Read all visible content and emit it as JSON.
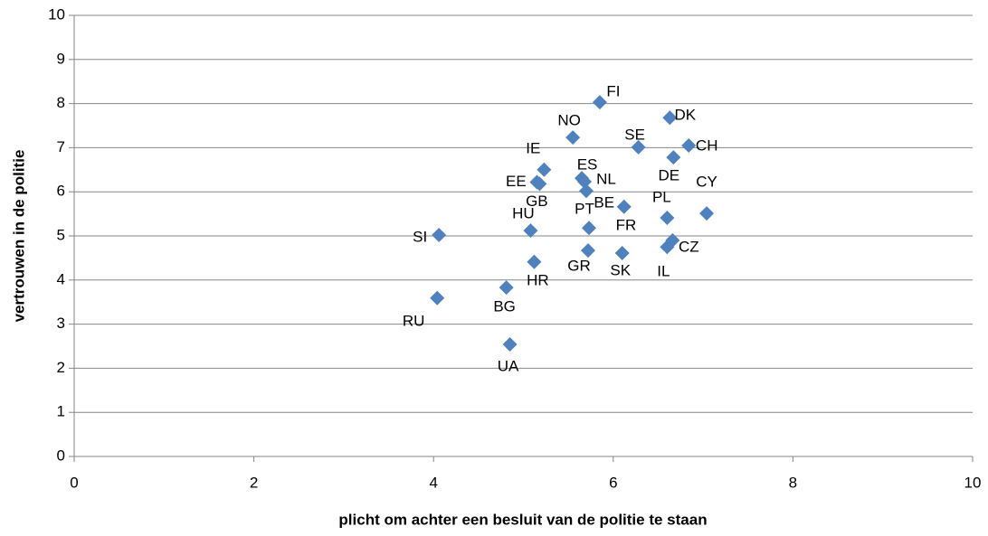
{
  "chart_data": {
    "type": "scatter",
    "x_label": "plicht om achter een besluit van de politie te staan",
    "y_label": "vertrouwen in de politie",
    "xlim": [
      0,
      10
    ],
    "xticks": [
      0,
      2,
      4,
      6,
      8,
      10
    ],
    "ylim": [
      0,
      10
    ],
    "yticks": [
      0,
      1,
      2,
      3,
      4,
      5,
      6,
      7,
      8,
      9,
      10
    ],
    "grid": true,
    "color": "#4f81bd",
    "labels": [
      "FI",
      "DK",
      "NO",
      "SE",
      "CH",
      "DE",
      "IE",
      "ES",
      "NL",
      "EE",
      "GB",
      "PT",
      "BE",
      "CY",
      "PL",
      "HU",
      "FR",
      "SI",
      "CZ",
      "IL",
      "GR",
      "SK",
      "HR",
      "BG",
      "RU",
      "UA"
    ],
    "x": [
      5.85,
      6.63,
      5.55,
      6.28,
      6.84,
      6.67,
      5.23,
      5.65,
      5.68,
      5.15,
      5.18,
      5.7,
      6.12,
      7.04,
      6.6,
      5.08,
      5.73,
      4.06,
      6.66,
      6.6,
      5.72,
      6.1,
      5.12,
      4.81,
      4.04,
      4.85
    ],
    "y": [
      8.03,
      7.68,
      7.23,
      7.01,
      7.05,
      6.78,
      6.5,
      6.31,
      6.23,
      6.22,
      6.18,
      6.02,
      5.66,
      5.51,
      5.41,
      5.12,
      5.18,
      5.02,
      4.9,
      4.75,
      4.67,
      4.61,
      4.41,
      3.83,
      3.59,
      2.54
    ]
  }
}
